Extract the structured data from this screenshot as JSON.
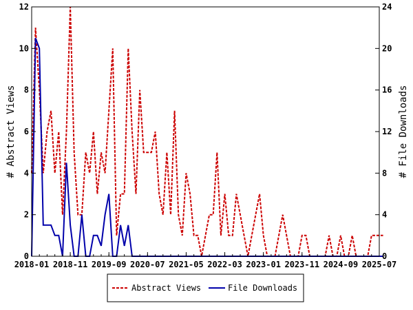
{
  "chart_data": {
    "type": "line",
    "x_tick_labels": [
      "2018-01",
      "2018-11",
      "2019-09",
      "2020-07",
      "2021-05",
      "2022-03",
      "2023-01",
      "2023-11",
      "2024-09",
      "2025-07"
    ],
    "y_left_label": "# Abstract Views",
    "y_right_label": "# File Downloads",
    "y_left_ticks": [
      "0",
      "2",
      "4",
      "6",
      "8",
      "10",
      "12"
    ],
    "y_right_ticks": [
      "0",
      "4",
      "8",
      "12",
      "16",
      "20",
      "24"
    ],
    "y_left_range": [
      0,
      12
    ],
    "y_right_range": [
      0,
      24
    ],
    "x_range": [
      "2018-01",
      "2025-07"
    ],
    "grid": false,
    "legend_position": "bottom",
    "series": [
      {
        "name": "Abstract Views",
        "axis": "left",
        "color": "#cc0000",
        "style": "dashed",
        "points": [
          [
            "2018-01",
            4
          ],
          [
            "2018-02",
            11
          ],
          [
            "2018-03",
            8
          ],
          [
            "2018-04",
            4
          ],
          [
            "2018-05",
            6
          ],
          [
            "2018-06",
            7
          ],
          [
            "2018-07",
            4
          ],
          [
            "2018-08",
            6
          ],
          [
            "2018-09",
            2
          ],
          [
            "2018-10",
            6
          ],
          [
            "2018-11",
            12
          ],
          [
            "2018-12",
            5
          ],
          [
            "2019-01",
            2
          ],
          [
            "2019-02",
            2
          ],
          [
            "2019-03",
            5
          ],
          [
            "2019-04",
            4
          ],
          [
            "2019-05",
            6
          ],
          [
            "2019-06",
            3
          ],
          [
            "2019-07",
            5
          ],
          [
            "2019-08",
            4
          ],
          [
            "2019-09",
            7
          ],
          [
            "2019-10",
            10
          ],
          [
            "2019-11",
            1
          ],
          [
            "2019-12",
            3
          ],
          [
            "2020-01",
            3
          ],
          [
            "2020-02",
            10
          ],
          [
            "2020-03",
            6
          ],
          [
            "2020-04",
            3
          ],
          [
            "2020-05",
            8
          ],
          [
            "2020-06",
            5
          ],
          [
            "2020-07",
            5
          ],
          [
            "2020-08",
            5
          ],
          [
            "2020-09",
            6
          ],
          [
            "2020-10",
            3
          ],
          [
            "2020-11",
            2
          ],
          [
            "2020-12",
            5
          ],
          [
            "2021-01",
            2
          ],
          [
            "2021-02",
            7
          ],
          [
            "2021-03",
            2
          ],
          [
            "2021-04",
            1
          ],
          [
            "2021-05",
            4
          ],
          [
            "2021-06",
            3
          ],
          [
            "2021-07",
            1
          ],
          [
            "2021-08",
            1
          ],
          [
            "2021-09",
            0
          ],
          [
            "2021-10",
            1
          ],
          [
            "2021-11",
            2
          ],
          [
            "2021-12",
            2
          ],
          [
            "2022-01",
            5
          ],
          [
            "2022-02",
            1
          ],
          [
            "2022-03",
            3
          ],
          [
            "2022-04",
            1
          ],
          [
            "2022-05",
            1
          ],
          [
            "2022-06",
            3
          ],
          [
            "2022-07",
            2
          ],
          [
            "2022-08",
            1
          ],
          [
            "2022-09",
            0
          ],
          [
            "2022-10",
            1
          ],
          [
            "2022-11",
            2
          ],
          [
            "2022-12",
            3
          ],
          [
            "2023-01",
            1
          ],
          [
            "2023-02",
            0
          ],
          [
            "2023-03",
            0
          ],
          [
            "2023-04",
            0
          ],
          [
            "2023-05",
            1
          ],
          [
            "2023-06",
            2
          ],
          [
            "2023-07",
            1
          ],
          [
            "2023-08",
            0
          ],
          [
            "2023-09",
            0
          ],
          [
            "2023-10",
            0
          ],
          [
            "2023-11",
            1
          ],
          [
            "2023-12",
            1
          ],
          [
            "2024-01",
            0
          ],
          [
            "2024-02",
            0
          ],
          [
            "2024-03",
            0
          ],
          [
            "2024-04",
            0
          ],
          [
            "2024-05",
            0
          ],
          [
            "2024-06",
            1
          ],
          [
            "2024-07",
            0
          ],
          [
            "2024-08",
            0
          ],
          [
            "2024-09",
            1
          ],
          [
            "2024-10",
            0
          ],
          [
            "2024-11",
            0
          ],
          [
            "2024-12",
            1
          ],
          [
            "2025-01",
            0
          ],
          [
            "2025-02",
            0
          ],
          [
            "2025-03",
            0
          ],
          [
            "2025-04",
            0
          ],
          [
            "2025-05",
            1
          ],
          [
            "2025-06",
            1
          ],
          [
            "2025-07",
            1
          ],
          [
            "2025-08",
            1
          ]
        ]
      },
      {
        "name": "File Downloads",
        "axis": "right",
        "color": "#0000aa",
        "style": "solid",
        "points": [
          [
            "2018-01",
            0
          ],
          [
            "2018-02",
            21
          ],
          [
            "2018-03",
            20
          ],
          [
            "2018-04",
            3
          ],
          [
            "2018-05",
            3
          ],
          [
            "2018-06",
            3
          ],
          [
            "2018-07",
            2
          ],
          [
            "2018-08",
            2
          ],
          [
            "2018-09",
            0
          ],
          [
            "2018-10",
            9
          ],
          [
            "2018-11",
            3
          ],
          [
            "2018-12",
            0
          ],
          [
            "2019-01",
            0
          ],
          [
            "2019-02",
            4
          ],
          [
            "2019-03",
            0
          ],
          [
            "2019-04",
            0
          ],
          [
            "2019-05",
            2
          ],
          [
            "2019-06",
            2
          ],
          [
            "2019-07",
            1
          ],
          [
            "2019-08",
            4
          ],
          [
            "2019-09",
            6
          ],
          [
            "2019-10",
            0
          ],
          [
            "2019-11",
            0
          ],
          [
            "2019-12",
            3
          ],
          [
            "2020-01",
            1
          ],
          [
            "2020-02",
            3
          ],
          [
            "2020-03",
            0
          ],
          [
            "2020-04",
            0
          ],
          [
            "2020-05",
            0
          ],
          [
            "2020-06",
            0
          ],
          [
            "2020-07",
            0
          ],
          [
            "2020-08",
            0
          ],
          [
            "2020-09",
            0
          ],
          [
            "2020-10",
            0
          ],
          [
            "2020-11",
            0
          ],
          [
            "2020-12",
            0
          ],
          [
            "2021-01",
            0
          ],
          [
            "2021-02",
            0
          ],
          [
            "2021-03",
            0
          ],
          [
            "2021-04",
            0
          ],
          [
            "2021-05",
            0
          ],
          [
            "2021-06",
            0
          ],
          [
            "2021-07",
            0
          ],
          [
            "2021-08",
            0
          ],
          [
            "2021-09",
            0
          ],
          [
            "2021-10",
            0
          ],
          [
            "2021-11",
            0
          ],
          [
            "2021-12",
            0
          ],
          [
            "2022-01",
            0
          ],
          [
            "2022-02",
            0
          ],
          [
            "2022-03",
            0
          ],
          [
            "2022-04",
            0
          ],
          [
            "2022-05",
            0
          ],
          [
            "2022-06",
            0
          ],
          [
            "2022-07",
            0
          ],
          [
            "2022-08",
            0
          ],
          [
            "2022-09",
            0
          ],
          [
            "2022-10",
            0
          ],
          [
            "2022-11",
            0
          ],
          [
            "2022-12",
            0
          ],
          [
            "2023-01",
            0
          ],
          [
            "2023-02",
            0
          ],
          [
            "2023-03",
            0
          ],
          [
            "2023-04",
            0
          ],
          [
            "2023-05",
            0
          ],
          [
            "2023-06",
            0
          ],
          [
            "2023-07",
            0
          ],
          [
            "2023-08",
            0
          ],
          [
            "2023-09",
            0
          ],
          [
            "2023-10",
            0
          ],
          [
            "2023-11",
            0
          ],
          [
            "2023-12",
            0
          ],
          [
            "2024-01",
            0
          ],
          [
            "2024-02",
            0
          ],
          [
            "2024-03",
            0
          ],
          [
            "2024-04",
            0
          ],
          [
            "2024-05",
            0
          ],
          [
            "2024-06",
            0
          ],
          [
            "2024-07",
            0
          ],
          [
            "2024-08",
            0
          ],
          [
            "2024-09",
            0
          ],
          [
            "2024-10",
            0
          ],
          [
            "2024-11",
            0
          ],
          [
            "2024-12",
            0
          ],
          [
            "2025-01",
            0
          ],
          [
            "2025-02",
            0
          ],
          [
            "2025-03",
            0
          ],
          [
            "2025-04",
            0
          ],
          [
            "2025-05",
            0
          ],
          [
            "2025-06",
            0
          ],
          [
            "2025-07",
            0
          ],
          [
            "2025-08",
            0
          ]
        ]
      }
    ]
  },
  "legend": {
    "abstract_views_label": "Abstract Views",
    "file_downloads_label": "File Downloads"
  }
}
